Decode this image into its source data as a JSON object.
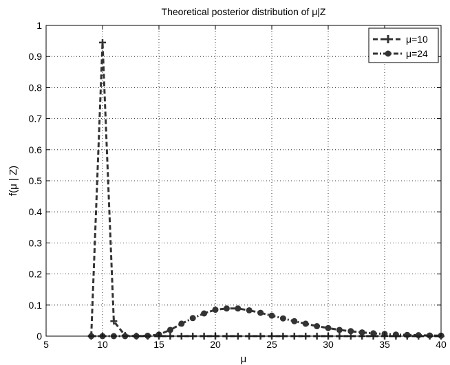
{
  "chart_data": {
    "type": "line",
    "title": "Theoretical posterior distribution of μ|Z",
    "xlabel": "μ",
    "ylabel": "f(μ | Z)",
    "xlim": [
      5,
      40
    ],
    "ylim": [
      0,
      1
    ],
    "xticks": [
      "5",
      "10",
      "15",
      "20",
      "25",
      "30",
      "35",
      "40"
    ],
    "yticks": [
      "0",
      "0.1",
      "0.2",
      "0.3",
      "0.4",
      "0.5",
      "0.6",
      "0.7",
      "0.8",
      "0.9",
      "1"
    ],
    "grid": true,
    "legend_position": "top-right",
    "series": [
      {
        "name": "μ=10",
        "marker": "plus",
        "line_style": "dashed",
        "color": "#333333",
        "x": [
          9,
          10,
          11,
          12,
          13,
          14,
          15,
          16,
          17,
          18,
          19,
          20,
          21,
          22,
          23,
          24,
          25,
          26,
          27,
          28,
          29,
          30,
          31,
          32,
          33,
          34,
          35,
          36,
          37,
          38,
          39,
          40
        ],
        "y": [
          0,
          0.945,
          0.048,
          0.002,
          0,
          0,
          0,
          0,
          0,
          0,
          0,
          0,
          0,
          0,
          0,
          0,
          0,
          0,
          0,
          0,
          0,
          0,
          0,
          0,
          0,
          0,
          0,
          0,
          0,
          0,
          0,
          0
        ]
      },
      {
        "name": "μ=24",
        "marker": "circle",
        "line_style": "dash-dot",
        "color": "#333333",
        "x": [
          9,
          10,
          11,
          12,
          13,
          14,
          15,
          16,
          17,
          18,
          19,
          20,
          21,
          22,
          23,
          24,
          25,
          26,
          27,
          28,
          29,
          30,
          31,
          32,
          33,
          34,
          35,
          36,
          37,
          38,
          39,
          40
        ],
        "y": [
          0,
          0,
          0,
          0,
          0,
          0.001,
          0.005,
          0.02,
          0.04,
          0.058,
          0.073,
          0.085,
          0.089,
          0.089,
          0.083,
          0.075,
          0.066,
          0.057,
          0.048,
          0.04,
          0.032,
          0.026,
          0.02,
          0.016,
          0.012,
          0.009,
          0.007,
          0.005,
          0.004,
          0.003,
          0.002,
          0.0015
        ]
      }
    ]
  }
}
